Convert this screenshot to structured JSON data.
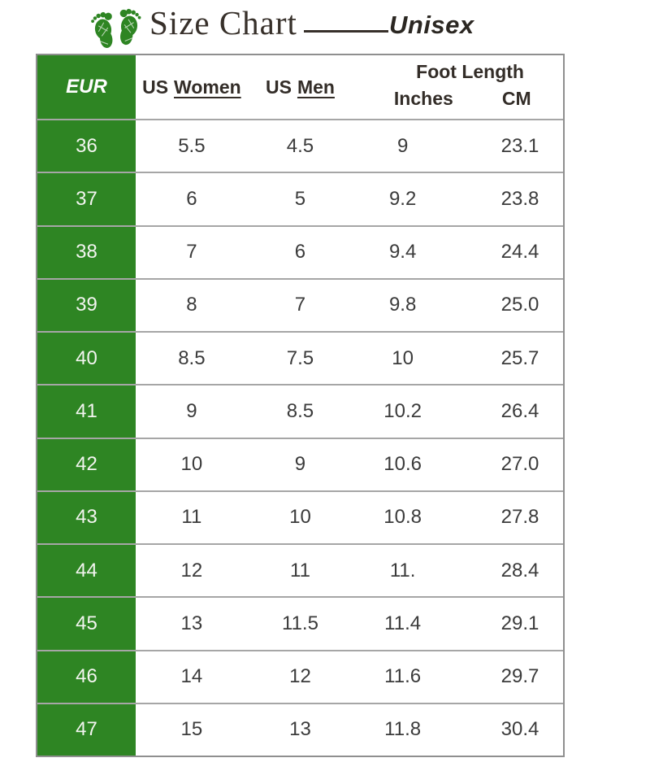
{
  "header": {
    "title": "Size Chart",
    "subtitle": "Unisex",
    "icon": "footprints-icon"
  },
  "table": {
    "eur_label": "EUR",
    "us_women": {
      "prefix": "US",
      "underlined": "Women"
    },
    "us_men": {
      "prefix": "US",
      "underlined": "Men"
    },
    "foot_length_label": "Foot Length",
    "inches_label": "Inches",
    "cm_label": "CM"
  },
  "chart_data": {
    "type": "table",
    "title": "Size Chart",
    "subtitle": "Unisex",
    "columns": [
      "EUR",
      "US Women",
      "US Men",
      "Foot Length - Inches",
      "Foot Length - CM"
    ],
    "rows": [
      [
        "36",
        "5.5",
        "4.5",
        "9",
        "23.1"
      ],
      [
        "37",
        "6",
        "5",
        "9.2",
        "23.8"
      ],
      [
        "38",
        "7",
        "6",
        "9.4",
        "24.4"
      ],
      [
        "39",
        "8",
        "7",
        "9.8",
        "25.0"
      ],
      [
        "40",
        "8.5",
        "7.5",
        "10",
        "25.7"
      ],
      [
        "41",
        "9",
        "8.5",
        "10.2",
        "26.4"
      ],
      [
        "42",
        "10",
        "9",
        "10.6",
        "27.0"
      ],
      [
        "43",
        "11",
        "10",
        "10.8",
        "27.8"
      ],
      [
        "44",
        "12",
        "11",
        "11.",
        "28.4"
      ],
      [
        "45",
        "13",
        "11.5",
        "11.4",
        "29.1"
      ],
      [
        "46",
        "14",
        "12",
        "11.6",
        "29.7"
      ],
      [
        "47",
        "15",
        "13",
        "11.8",
        "30.4"
      ]
    ]
  },
  "colors": {
    "green": "#2e8523",
    "title": "#37302a",
    "headerText": "#332d28",
    "cellText": "#3b3b3b",
    "eurText": "#f3f5f0",
    "rowLine": "#a6a6a6",
    "outerBorder": "#8f8f8f"
  }
}
